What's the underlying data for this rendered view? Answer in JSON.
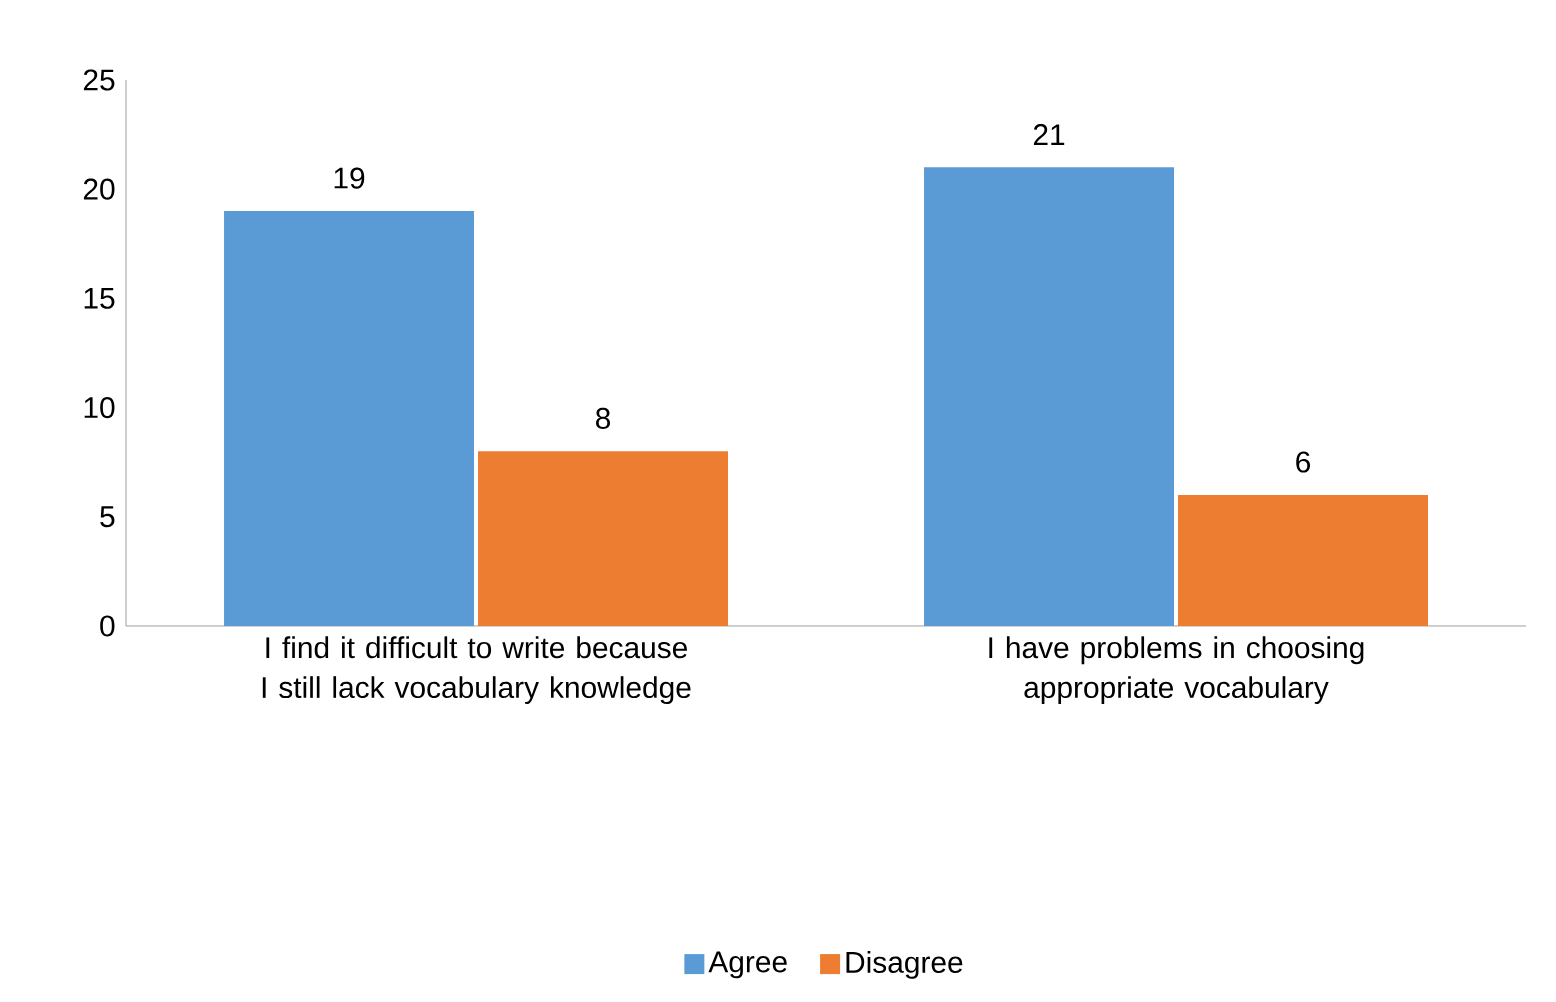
{
  "chart_data": {
    "type": "bar",
    "categories": [
      "I find it difficult to write because I still lack vocabulary knowledge",
      "I have problems in choosing appropriate vocabulary"
    ],
    "series": [
      {
        "name": "Agree",
        "color": "#5b9bd5",
        "values": [
          19,
          21
        ]
      },
      {
        "name": "Disagree",
        "color": "#ed7d31",
        "values": [
          8,
          6
        ]
      }
    ],
    "ylim": [
      0,
      25
    ],
    "yticks": [
      0,
      5,
      10,
      15,
      20,
      25
    ],
    "data_labels": true,
    "legend": "bottom",
    "grid": false
  }
}
